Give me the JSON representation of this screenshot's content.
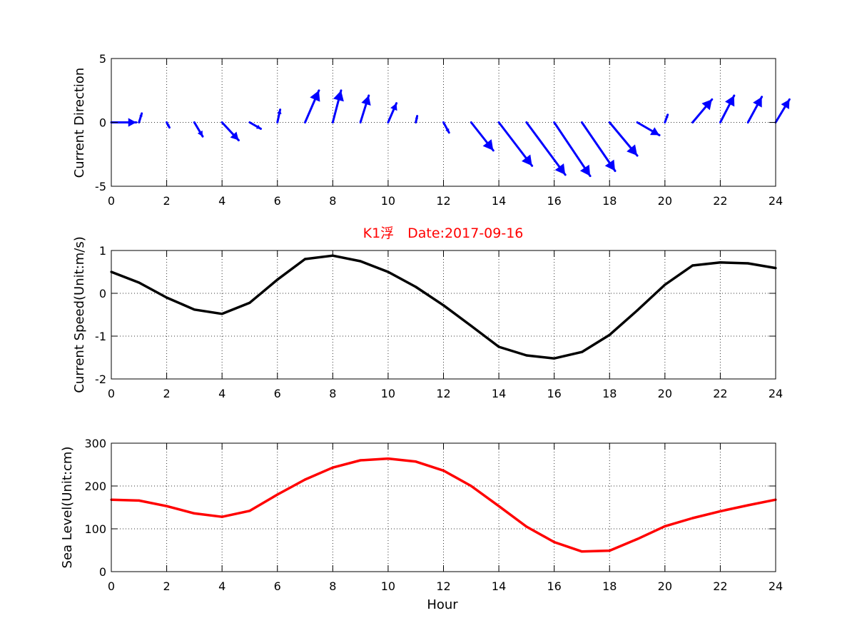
{
  "chart_data": [
    {
      "type": "quiver",
      "title": "",
      "xlabel": "",
      "ylabel": "Current Direction",
      "xlim": [
        0,
        24
      ],
      "ylim": [
        -5,
        5
      ],
      "xticks": [
        0,
        2,
        4,
        6,
        8,
        10,
        12,
        14,
        16,
        18,
        20,
        22,
        24
      ],
      "yticks": [
        -5,
        0,
        5
      ],
      "grid": true,
      "color": "#0000ff",
      "x": [
        0,
        1,
        2,
        3,
        4,
        5,
        6,
        7,
        8,
        9,
        10,
        11,
        12,
        13,
        14,
        15,
        16,
        17,
        18,
        19,
        20,
        21,
        22,
        23,
        24
      ],
      "u": [
        0.9,
        0.1,
        0.1,
        0.3,
        0.6,
        0.4,
        0.1,
        0.5,
        0.3,
        0.3,
        0.3,
        0.05,
        0.2,
        0.8,
        1.2,
        1.4,
        1.3,
        1.2,
        1.0,
        0.8,
        0.1,
        0.7,
        0.5,
        0.5,
        0.5
      ],
      "v": [
        0.0,
        0.7,
        -0.4,
        -1.1,
        -1.4,
        -0.5,
        1.0,
        2.5,
        2.5,
        2.1,
        1.5,
        0.5,
        -0.8,
        -2.2,
        -3.4,
        -4.1,
        -4.2,
        -3.8,
        -2.6,
        -1.0,
        0.6,
        1.8,
        2.1,
        2.0,
        1.8
      ]
    },
    {
      "type": "line",
      "title": "K1浮　Date:2017-09-16",
      "xlabel": "",
      "ylabel": "Current Speed(Unit:m/s)",
      "xlim": [
        0,
        24
      ],
      "ylim": [
        -2,
        1
      ],
      "xticks": [
        0,
        2,
        4,
        6,
        8,
        10,
        12,
        14,
        16,
        18,
        20,
        22,
        24
      ],
      "yticks": [
        -2,
        -1,
        0,
        1
      ],
      "grid": true,
      "color": "#000000",
      "x": [
        0,
        1,
        2,
        3,
        4,
        5,
        6,
        7,
        8,
        9,
        10,
        11,
        12,
        13,
        14,
        15,
        16,
        17,
        18,
        19,
        20,
        21,
        22,
        23,
        24
      ],
      "y": [
        0.5,
        0.25,
        -0.1,
        -0.38,
        -0.48,
        -0.22,
        0.32,
        0.8,
        0.88,
        0.75,
        0.5,
        0.15,
        -0.28,
        -0.76,
        -1.25,
        -1.45,
        -1.52,
        -1.37,
        -0.97,
        -0.4,
        0.2,
        0.65,
        0.72,
        0.7,
        0.59
      ]
    },
    {
      "type": "line",
      "title": "",
      "xlabel": "Hour",
      "ylabel": "Sea Level(Unit:cm)",
      "xlim": [
        0,
        24
      ],
      "ylim": [
        0,
        300
      ],
      "xticks": [
        0,
        2,
        4,
        6,
        8,
        10,
        12,
        14,
        16,
        18,
        20,
        22,
        24
      ],
      "yticks": [
        0,
        100,
        200,
        300
      ],
      "grid": true,
      "color": "#ff0000",
      "x": [
        0,
        1,
        2,
        3,
        4,
        5,
        6,
        7,
        8,
        9,
        10,
        11,
        12,
        13,
        14,
        15,
        16,
        17,
        18,
        19,
        20,
        21,
        22,
        23,
        24
      ],
      "y": [
        168,
        166,
        153,
        136,
        128,
        142,
        180,
        215,
        243,
        260,
        264,
        257,
        236,
        200,
        153,
        105,
        69,
        47,
        49,
        76,
        106,
        125,
        141,
        155,
        168
      ]
    }
  ]
}
